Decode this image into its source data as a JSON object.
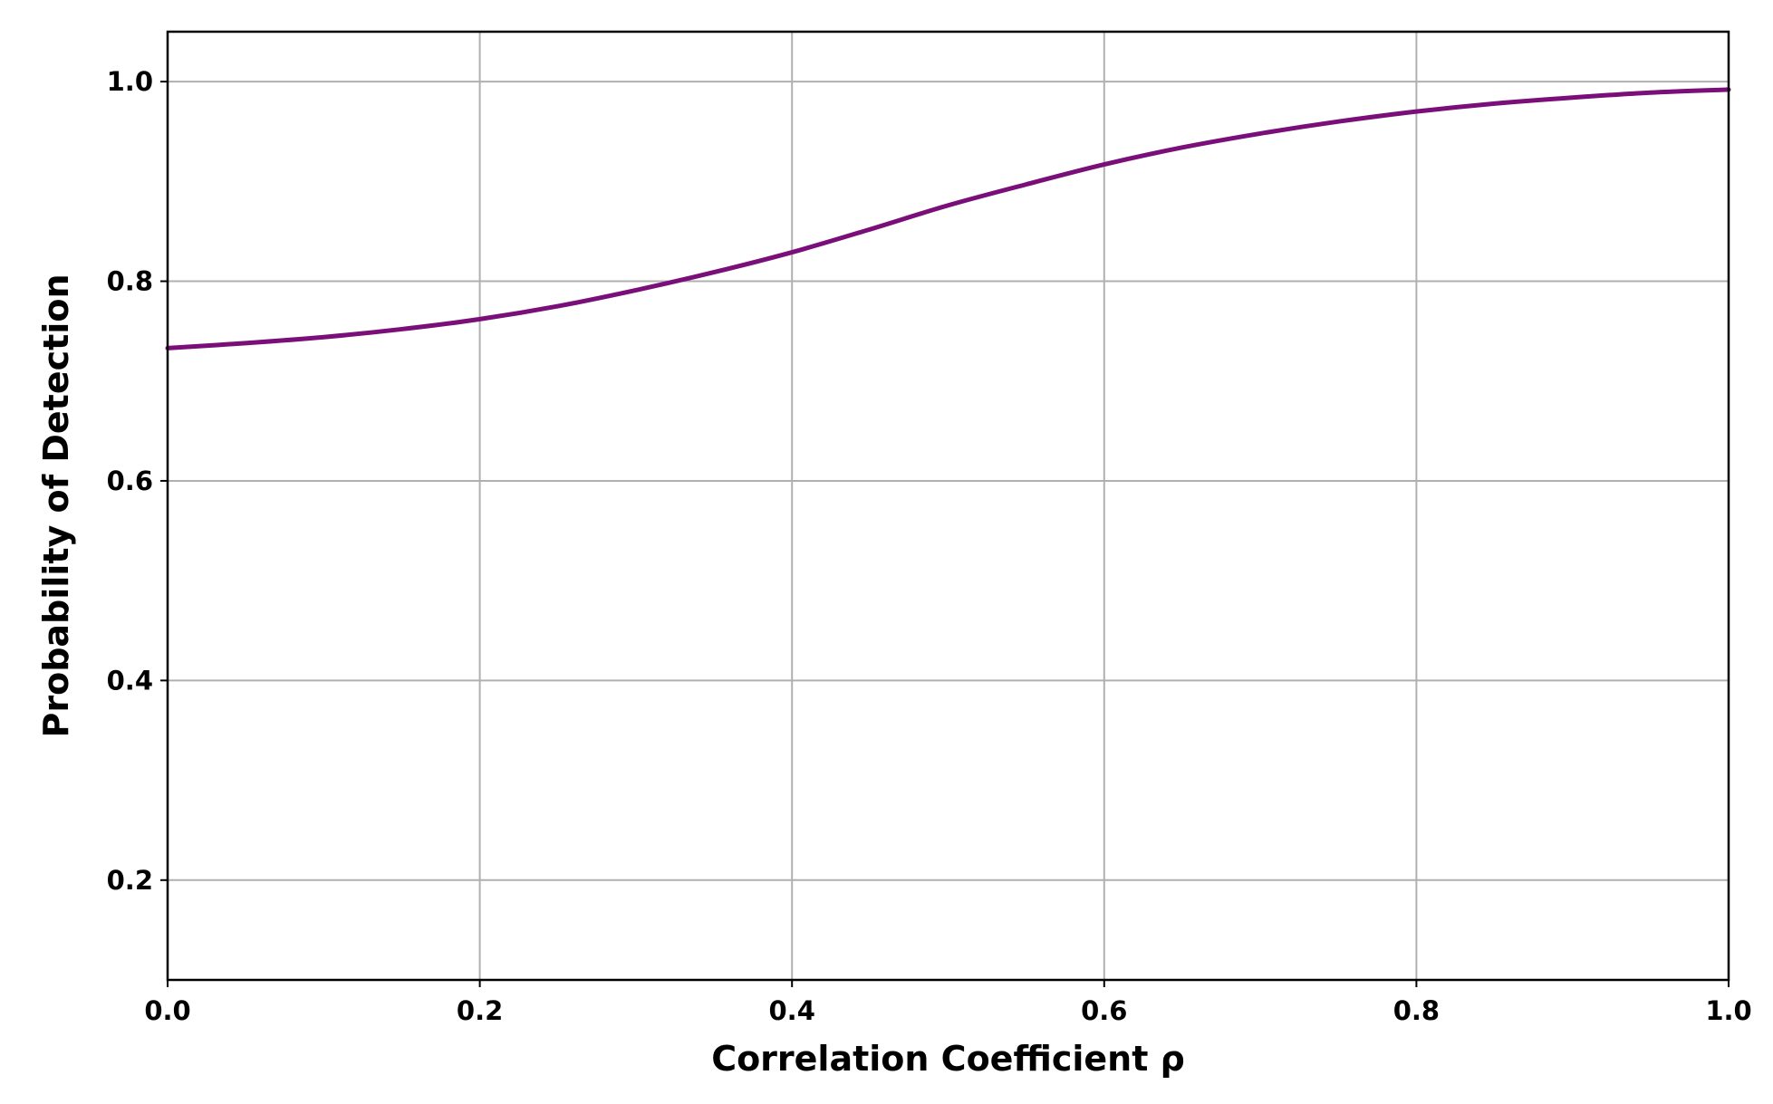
{
  "chart_data": {
    "type": "line",
    "title": "",
    "xlabel": "Correlation Coefficient ρ",
    "ylabel": "Probability of Detection",
    "xlim": [
      0.0,
      1.0
    ],
    "ylim": [
      0.1,
      1.05
    ],
    "grid": true,
    "xticks": [
      0.0,
      0.2,
      0.4,
      0.6,
      0.8,
      1.0
    ],
    "xtick_labels": [
      "0.0",
      "0.2",
      "0.4",
      "0.6",
      "0.8",
      "1.0"
    ],
    "yticks": [
      0.2,
      0.4,
      0.6,
      0.8,
      1.0
    ],
    "ytick_labels": [
      "0.2",
      "0.4",
      "0.6",
      "0.8",
      "1.0"
    ],
    "colors": {
      "line": "#7a0f7a",
      "grid": "#b0b0b0",
      "frame": "#000000"
    },
    "series": [
      {
        "x": [
          0.0,
          0.05,
          0.1,
          0.15,
          0.2,
          0.25,
          0.3,
          0.35,
          0.4,
          0.45,
          0.5,
          0.55,
          0.6,
          0.65,
          0.7,
          0.75,
          0.8,
          0.85,
          0.9,
          0.95,
          1.0
        ],
        "y": [
          0.733,
          0.738,
          0.744,
          0.752,
          0.762,
          0.775,
          0.791,
          0.809,
          0.829,
          0.852,
          0.876,
          0.897,
          0.917,
          0.934,
          0.948,
          0.96,
          0.97,
          0.978,
          0.984,
          0.989,
          0.992
        ]
      }
    ]
  }
}
